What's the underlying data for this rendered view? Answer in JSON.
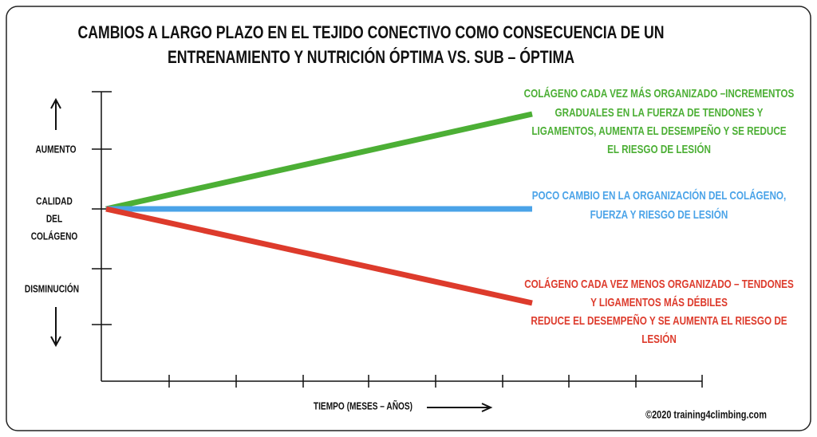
{
  "title": [
    "CAMBIOS A LARGO PLAZO EN EL TEJIDO CONECTIVO COMO CONSECUENCIA DE  UN",
    "ENTRENAMIENTO Y NUTRICIÓN ÓPTIMA VS. SUB – ÓPTIMA"
  ],
  "y_axis": {
    "top": "AUMENTO",
    "middle": [
      "CALIDAD",
      "DEL",
      "COLÁGENO"
    ],
    "bottom": "DISMINUCIÓN"
  },
  "lines": [
    {
      "color": "#4caf35",
      "annotation": [
        "COLÁGENO CADA VEZ MÁS ORGANIZADO –INCREMENTOS",
        "GRADUALES EN LA FUERZA DE TENDONES Y",
        "LIGAMENTOS,  AUMENTA EL DESEMPEÑO Y SE REDUCE",
        "EL RIESGO DE LESIÓN"
      ]
    },
    {
      "color": "#4aa3e8",
      "annotation": [
        "POCO CAMBIO EN LA ORGANIZACIÓN DEL COLÁGENO,",
        "FUERZA Y RIESGO DE LESIÓN"
      ]
    },
    {
      "color": "#dd3b2c",
      "annotation": [
        "COLÁGENO CADA VEZ MENOS ORGANIZADO – TENDONES",
        "Y LIGAMENTOS MÁS DÉBILES",
        "REDUCE EL DESEMPEÑO Y SE AUMENTA EL RIESGO DE",
        "LESIÓN"
      ]
    }
  ],
  "x_axis": {
    "label": "TIEMPO (MESES – AÑOS)"
  },
  "credit": "©2020 training4climbing.com"
}
